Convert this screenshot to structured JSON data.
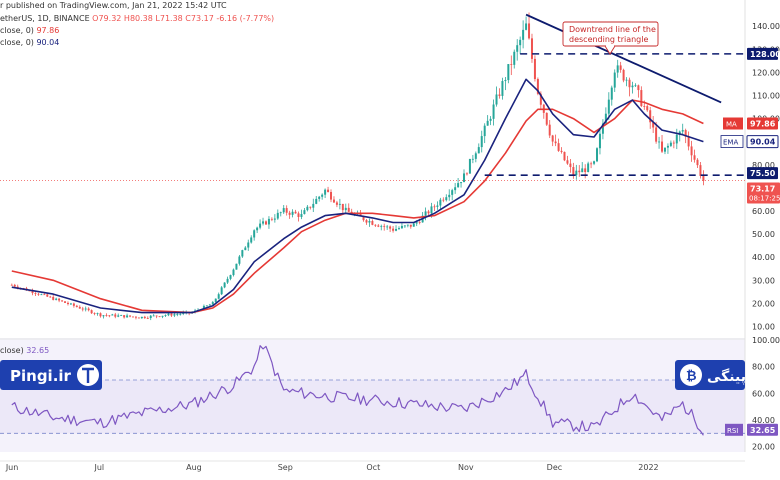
{
  "header": {
    "published": "r published on TradingView.com, Jan 21, 2022 15:42 UTC",
    "symbol_line_prefix": "etherUS, 1D, BINANCE",
    "open": "O79.32",
    "high": "H80.38",
    "low": "L71.38",
    "close": "C73.17",
    "change": "-6.16 (-7.77%)",
    "ma_line": "close, 0)",
    "ma_value": "97.86",
    "ema_line": "close, 0)",
    "ema_value": "90.04",
    "rsi_line": "close)",
    "rsi_value": "32.65"
  },
  "annotation": {
    "line1": "Downtrend line of the",
    "line2": "descending triangle"
  },
  "price_labels": {
    "resistance": "128.00",
    "ma_tag": "MA",
    "ma_value": "97.86",
    "ema_tag": "EMA",
    "ema_value": "90.04",
    "support": "75.50",
    "last": "73.17",
    "countdown": "08:17:25",
    "rsi_tag": "RSI",
    "rsi_value": "32.65"
  },
  "brands": {
    "left": "Pingi.ir",
    "right": "پینگی"
  },
  "colors": {
    "up": "#26a69a",
    "down": "#ef5350",
    "ma": "#e53935",
    "ema": "#1a237e",
    "rsi": "#7e57c2",
    "dashed": "#0d1b6e",
    "brand_bar": "#1e40af"
  },
  "chart_data": [
    {
      "type": "line",
      "title": "",
      "y_axis_ticks": [
        "140.00",
        "130.00",
        "120.00",
        "110.00",
        "100.00",
        "90.00",
        "80.00",
        "70.00",
        "60.00",
        "50.00",
        "40.00",
        "30.00",
        "20.00",
        "10.00"
      ],
      "x_axis_ticks": [
        "Jun",
        "Jul",
        "Aug",
        "Sep",
        "Oct",
        "Nov",
        "Dec",
        "2022"
      ],
      "ylim": [
        5,
        147
      ],
      "levels": {
        "resistance": 128.0,
        "support": 75.5,
        "last": 73.17
      },
      "trendline": {
        "from": [
          "Nov 22",
          145
        ],
        "to": [
          "Jan 27",
          107
        ]
      },
      "x": [
        "Jun 1",
        "Jun 15",
        "Jul 1",
        "Jul 15",
        "Aug 1",
        "Aug 8",
        "Aug 15",
        "Aug 22",
        "Sep 1",
        "Sep 7",
        "Sep 15",
        "Sep 22",
        "Oct 1",
        "Oct 8",
        "Oct 15",
        "Oct 22",
        "Nov 1",
        "Nov 8",
        "Nov 15",
        "Nov 22",
        "Nov 26",
        "Dec 1",
        "Dec 8",
        "Dec 15",
        "Dec 22",
        "Dec 28",
        "Jan 1",
        "Jan 7",
        "Jan 14",
        "Jan 21"
      ],
      "series": [
        {
          "name": "Price",
          "values": [
            28,
            22,
            15,
            14,
            16,
            20,
            35,
            52,
            60,
            58,
            69,
            60,
            55,
            52,
            54,
            62,
            75,
            95,
            118,
            140,
            112,
            90,
            76,
            80,
            122,
            115,
            105,
            85,
            95,
            73.17
          ]
        },
        {
          "name": "MA",
          "values": [
            34,
            30,
            22,
            17,
            16,
            18,
            24,
            33,
            44,
            51,
            56,
            59,
            59,
            58,
            57,
            58,
            64,
            73,
            85,
            99,
            104,
            104,
            100,
            94,
            100,
            108,
            107,
            104,
            102,
            97.86
          ]
        },
        {
          "name": "EMA",
          "values": [
            27,
            24,
            18,
            16,
            16,
            19,
            26,
            38,
            48,
            53,
            58,
            59,
            57,
            55,
            55,
            59,
            67,
            82,
            100,
            117,
            112,
            102,
            93,
            92,
            104,
            108,
            102,
            95,
            93,
            90.04
          ]
        }
      ]
    },
    {
      "type": "line",
      "title": "",
      "y_axis_ticks": [
        "100.00",
        "80.00",
        "60.00",
        "40.00",
        "20.00"
      ],
      "ylim": [
        16,
        100
      ],
      "levels": {
        "upper": 70,
        "lower": 30
      },
      "x": [
        "Jun 1",
        "Jun 15",
        "Jul 1",
        "Jul 15",
        "Aug 1",
        "Aug 15",
        "Aug 22",
        "Aug 25",
        "Sep 1",
        "Sep 15",
        "Oct 1",
        "Oct 15",
        "Nov 1",
        "Nov 15",
        "Nov 22",
        "Dec 1",
        "Dec 15",
        "Dec 28",
        "Jan 7",
        "Jan 14",
        "Jan 21"
      ],
      "series": [
        {
          "name": "RSI",
          "values": [
            50,
            42,
            38,
            45,
            52,
            66,
            80,
            97,
            62,
            58,
            55,
            52,
            48,
            62,
            74,
            38,
            34,
            60,
            40,
            52,
            32.65
          ]
        }
      ]
    }
  ]
}
